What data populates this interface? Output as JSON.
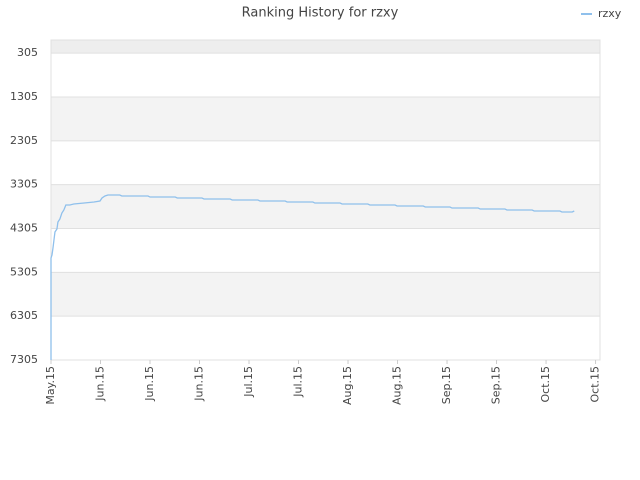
{
  "chart_data": {
    "type": "line",
    "title": "Ranking History for rzxy",
    "x": [
      0,
      0,
      0.02,
      0.04,
      0.06,
      0.08,
      0.12,
      0.14,
      0.18,
      0.22,
      0.26,
      0.3,
      0.38,
      0.46,
      0.67,
      0.87,
      0.99,
      1.03,
      1.09,
      1.15,
      1.39,
      1.43,
      1.96,
      2,
      2.51,
      2.55,
      3.05,
      3.09,
      3.62,
      3.66,
      4.18,
      4.22,
      4.73,
      4.77,
      5.29,
      5.33,
      5.84,
      5.88,
      6.4,
      6.44,
      6.95,
      6.99,
      7.52,
      7.56,
      8.06,
      8.1,
      8.63,
      8.67,
      9.17,
      9.21,
      9.72,
      9.76,
      10.28,
      10.32,
      10.53,
      10.57
    ],
    "series": [
      {
        "name": "rzxy",
        "color": "#8fc0ec",
        "values": [
          7305,
          4978,
          4910,
          4750,
          4567,
          4385,
          4317,
          4157,
          4088,
          3952,
          3883,
          3769,
          3769,
          3746,
          3724,
          3701,
          3678,
          3609,
          3564,
          3541,
          3541,
          3564,
          3564,
          3587,
          3587,
          3609,
          3609,
          3632,
          3632,
          3655,
          3655,
          3678,
          3678,
          3701,
          3701,
          3724,
          3724,
          3746,
          3746,
          3769,
          3769,
          3792,
          3792,
          3815,
          3815,
          3838,
          3838,
          3861,
          3861,
          3883,
          3883,
          3906,
          3906,
          3929,
          3929,
          3906
        ]
      }
    ],
    "xlim": [
      0,
      11.09
    ],
    "xticks": [
      {
        "value": 0,
        "label": "May.15"
      },
      {
        "value": 1,
        "label": "Jun.15"
      },
      {
        "value": 2,
        "label": "Jun.15"
      },
      {
        "value": 3,
        "label": "Jun.15"
      },
      {
        "value": 4,
        "label": "Jul.15"
      },
      {
        "value": 5,
        "label": "Jul.15"
      },
      {
        "value": 6,
        "label": "Aug.15"
      },
      {
        "value": 7,
        "label": "Aug.15"
      },
      {
        "value": 8,
        "label": "Sep.15"
      },
      {
        "value": 9,
        "label": "Sep.15"
      },
      {
        "value": 10,
        "label": "Oct.15"
      },
      {
        "value": 11,
        "label": "Oct.15"
      }
    ],
    "ylim": [
      7305,
      5
    ],
    "yticks": [
      305,
      1305,
      2305,
      3305,
      4305,
      5305,
      6305,
      7305
    ],
    "legend": "top-right",
    "grid": true
  }
}
